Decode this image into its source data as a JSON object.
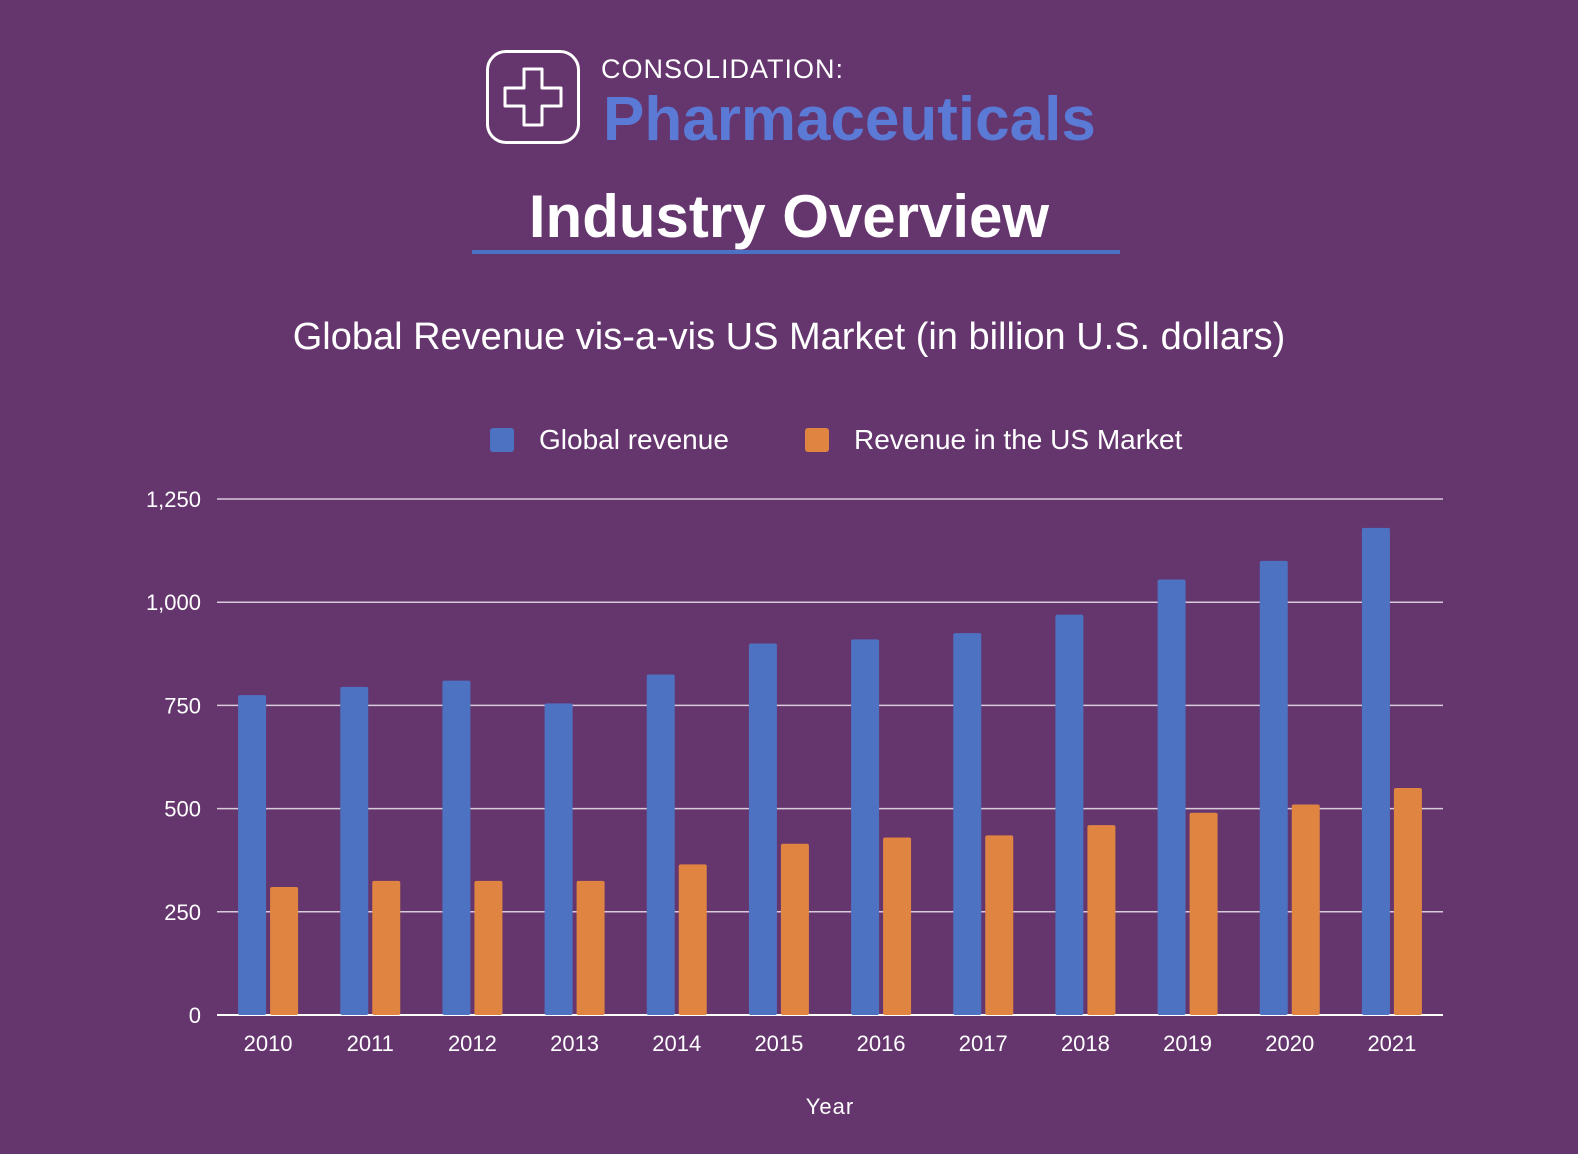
{
  "header": {
    "kicker": "CONSOLIDATION:",
    "brand": "Pharmaceuticals",
    "logo_icon": "medical-cross-icon"
  },
  "heading": "Industry Overview",
  "colors": {
    "background": "#65356e",
    "global": "#4e72c2",
    "us": "#e08442",
    "accent": "#5a7ad6"
  },
  "chart_data": {
    "type": "bar",
    "title": "Global Revenue vis-a-vis US Market (in billion U.S. dollars)",
    "xlabel": "Year",
    "ylabel": "",
    "categories": [
      "2010",
      "2011",
      "2012",
      "2013",
      "2014",
      "2015",
      "2016",
      "2017",
      "2018",
      "2019",
      "2020",
      "2021"
    ],
    "series": [
      {
        "name": "Global revenue",
        "values": [
          775,
          795,
          810,
          755,
          825,
          900,
          910,
          925,
          970,
          1055,
          1100,
          1180
        ]
      },
      {
        "name": "Revenue in the US Market",
        "values": [
          310,
          325,
          325,
          325,
          365,
          415,
          430,
          435,
          460,
          490,
          510,
          550
        ]
      }
    ],
    "ylim": [
      0,
      1250
    ],
    "yticks": [
      {
        "value": 0,
        "label": "0"
      },
      {
        "value": 250,
        "label": "250"
      },
      {
        "value": 500,
        "label": "500"
      },
      {
        "value": 750,
        "label": "750"
      },
      {
        "value": 1000,
        "label": "1,000"
      },
      {
        "value": 1250,
        "label": "1,250"
      }
    ],
    "grid": true,
    "legend": "top-center"
  }
}
